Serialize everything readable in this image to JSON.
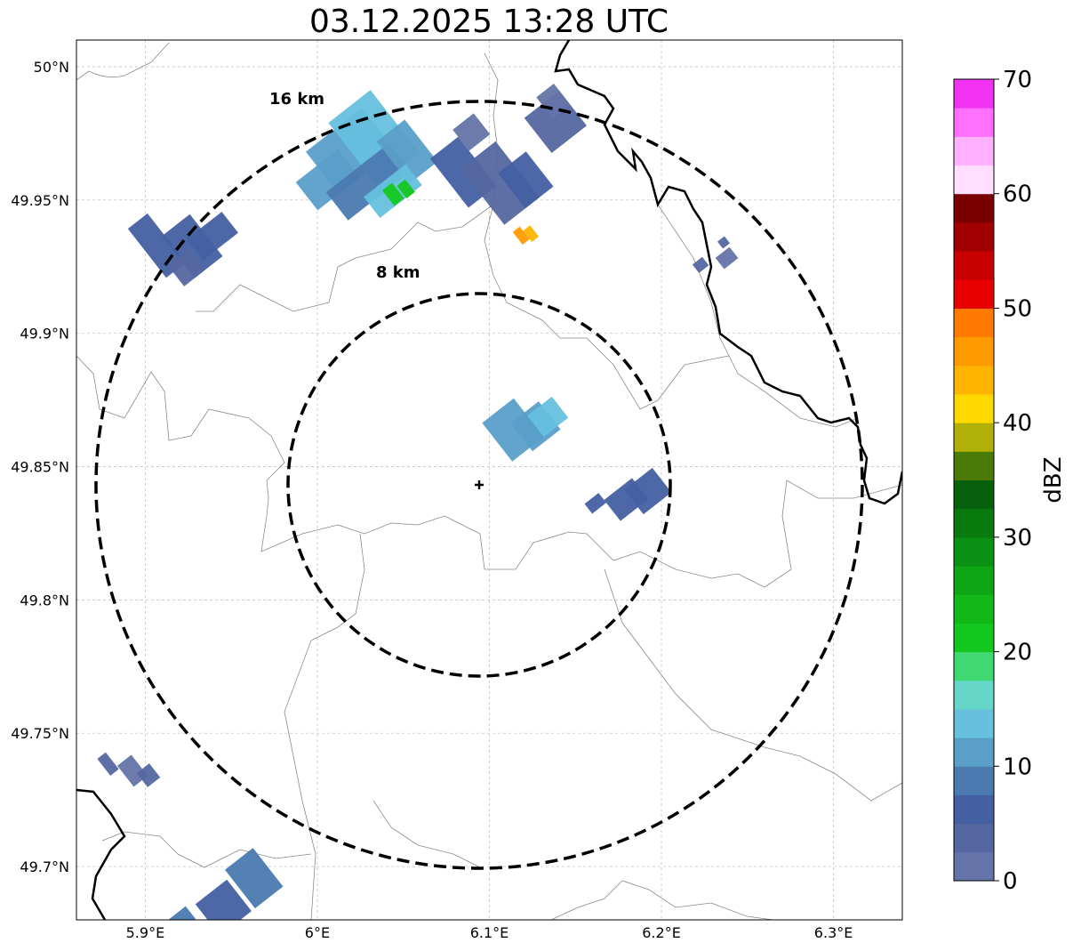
{
  "title": "03.12.2025 13:28 UTC",
  "map": {
    "lon_range": [
      5.86,
      6.34
    ],
    "lat_range": [
      49.68,
      50.01
    ],
    "lon_ticks": [
      5.9,
      6.0,
      6.1,
      6.2,
      6.3
    ],
    "lon_tick_labels": [
      "5.9°E",
      "6°E",
      "6.1°E",
      "6.2°E",
      "6.3°E"
    ],
    "lat_ticks": [
      49.7,
      49.75,
      49.8,
      49.85,
      49.9,
      49.95,
      50.0
    ],
    "lat_tick_labels": [
      "49.7°N",
      "49.75°N",
      "49.8°N",
      "49.85°N",
      "49.9°N",
      "49.95°N",
      "50°N"
    ],
    "grid": true,
    "radar_site": {
      "lon": 6.096,
      "lat": 49.843,
      "marker": "plus"
    },
    "range_rings": [
      {
        "label": "16 km",
        "radius_km": 16
      },
      {
        "label": "8 km",
        "radius_km": 8
      }
    ],
    "echoes": [
      {
        "name": "northwest-cell",
        "lon": 5.925,
        "lat": 49.94,
        "dbz": 6
      },
      {
        "name": "north-cell",
        "lon": 6.04,
        "lat": 49.962,
        "dbz": 12
      },
      {
        "name": "north-cell-core",
        "lon": 6.045,
        "lat": 49.953,
        "dbz": 22
      },
      {
        "name": "northeast-cell",
        "lon": 6.105,
        "lat": 49.96,
        "dbz": 5
      },
      {
        "name": "northeast-cell-core",
        "lon": 6.12,
        "lat": 49.937,
        "dbz": 45
      },
      {
        "name": "far-northeast-cell",
        "lon": 6.14,
        "lat": 49.978,
        "dbz": 3
      },
      {
        "name": "central-cell",
        "lon": 6.118,
        "lat": 49.867,
        "dbz": 12
      },
      {
        "name": "east-cell",
        "lon": 6.18,
        "lat": 49.84,
        "dbz": 6
      },
      {
        "name": "east-small-cell",
        "lon": 6.235,
        "lat": 49.928,
        "dbz": 3
      },
      {
        "name": "southwest-cell",
        "lon": 5.895,
        "lat": 49.735,
        "dbz": 3
      },
      {
        "name": "south-cells",
        "lon": 5.94,
        "lat": 49.685,
        "dbz": 8
      }
    ]
  },
  "colorbar": {
    "label": "dBZ",
    "tick_labels": [
      "0",
      "10",
      "20",
      "30",
      "40",
      "50",
      "60",
      "70"
    ],
    "min": 0,
    "max": 70,
    "step": 2.5,
    "colors": [
      "#6574a8",
      "#5567a0",
      "#4560a2",
      "#4b7ab0",
      "#5a9fc8",
      "#66c0de",
      "#66d6c8",
      "#40d870",
      "#12c81e",
      "#12b818",
      "#0ea614",
      "#0a9012",
      "#087a0e",
      "#06600c",
      "#4a7a08",
      "#b0b008",
      "#ffd800",
      "#ffb400",
      "#ff9a00",
      "#ff7a00",
      "#e80000",
      "#c80000",
      "#a00000",
      "#7a0000",
      "#ffdeff",
      "#ffb0ff",
      "#ff70ff",
      "#f232f2"
    ]
  }
}
